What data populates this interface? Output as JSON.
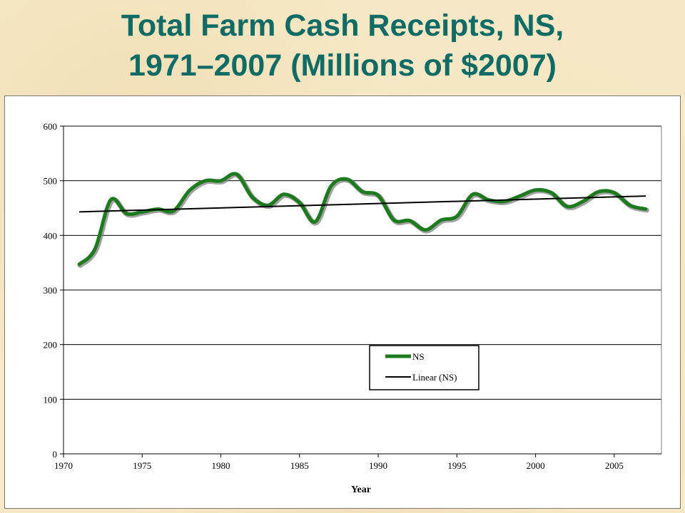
{
  "slide": {
    "title_line1": "Total Farm Cash Receipts, NS,",
    "title_line2": "1971–2007 (Millions of $2007)"
  },
  "colors": {
    "title": "#0f6b63",
    "series_ns": "#1e7a1e",
    "trend": "#000000",
    "background": "#f6e8c6"
  },
  "chart_data": {
    "type": "line",
    "xlabel": "Year",
    "ylabel": "",
    "xlim": [
      1970,
      2008
    ],
    "ylim": [
      0,
      600
    ],
    "x_ticks": [
      1970,
      1975,
      1980,
      1985,
      1990,
      1995,
      2000,
      2005
    ],
    "y_ticks": [
      0,
      100,
      200,
      300,
      400,
      500,
      600
    ],
    "grid": "horizontal",
    "legend_position": "center-right",
    "x": [
      1971,
      1972,
      1973,
      1974,
      1975,
      1976,
      1977,
      1978,
      1979,
      1980,
      1981,
      1982,
      1983,
      1984,
      1985,
      1986,
      1987,
      1988,
      1989,
      1990,
      1991,
      1992,
      1993,
      1994,
      1995,
      1996,
      1997,
      1998,
      1999,
      2000,
      2001,
      2002,
      2003,
      2004,
      2005,
      2006,
      2007
    ],
    "series": [
      {
        "name": "NS",
        "values": [
          347,
          375,
          465,
          440,
          443,
          448,
          445,
          482,
          500,
          500,
          512,
          470,
          455,
          475,
          460,
          425,
          490,
          503,
          480,
          473,
          428,
          427,
          410,
          428,
          435,
          475,
          465,
          462,
          472,
          483,
          478,
          453,
          462,
          480,
          478,
          455,
          448
        ]
      },
      {
        "name": "Linear (NS)",
        "trend": "linear",
        "start": [
          1971,
          443
        ],
        "end": [
          2007,
          472
        ]
      }
    ]
  }
}
